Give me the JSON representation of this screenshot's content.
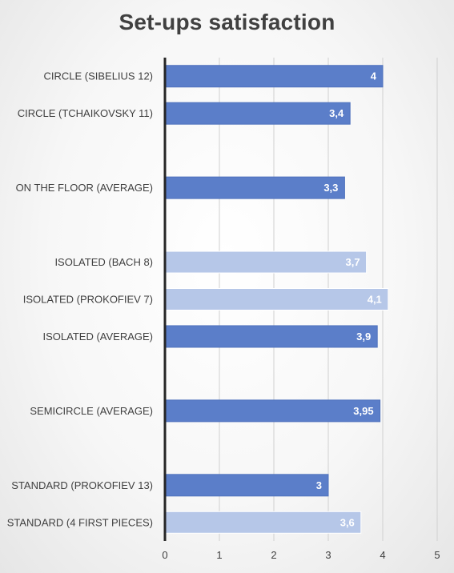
{
  "chart_data": {
    "type": "bar",
    "orientation": "horizontal",
    "title": "Set-ups satisfaction",
    "xlim": [
      0,
      5
    ],
    "x_ticks": [
      "0",
      "1",
      "2",
      "3",
      "4",
      "5"
    ],
    "grid": true,
    "legend": "none",
    "colors": {
      "dark": "#5b7ec9",
      "light": "#b6c7e8"
    },
    "bars": [
      {
        "category": "CIRCLE (SIBELIUS 12)",
        "value": 4,
        "label": "4",
        "shade": "dark"
      },
      {
        "category": "CIRCLE (TCHAIKOVSKY 11)",
        "value": 3.4,
        "label": "3,4",
        "shade": "dark"
      },
      {
        "category": "",
        "value": null,
        "label": "",
        "shade": "dark"
      },
      {
        "category": "ON THE FLOOR (AVERAGE)",
        "value": 3.3,
        "label": "3,3",
        "shade": "dark"
      },
      {
        "category": "",
        "value": null,
        "label": "",
        "shade": "dark"
      },
      {
        "category": "ISOLATED (BACH 8)",
        "value": 3.7,
        "label": "3,7",
        "shade": "light"
      },
      {
        "category": "ISOLATED (PROKOFIEV 7)",
        "value": 4.1,
        "label": "4,1",
        "shade": "light"
      },
      {
        "category": "ISOLATED (AVERAGE)",
        "value": 3.9,
        "label": "3,9",
        "shade": "dark"
      },
      {
        "category": "",
        "value": null,
        "label": "",
        "shade": "dark"
      },
      {
        "category": "SEMICIRCLE (AVERAGE)",
        "value": 3.95,
        "label": "3,95",
        "shade": "dark"
      },
      {
        "category": "",
        "value": null,
        "label": "",
        "shade": "dark"
      },
      {
        "category": "STANDARD (PROKOFIEV 13)",
        "value": 3,
        "label": "3",
        "shade": "dark"
      },
      {
        "category": "STANDARD (4 FIRST PIECES)",
        "value": 3.6,
        "label": "3,6",
        "shade": "light"
      }
    ]
  }
}
